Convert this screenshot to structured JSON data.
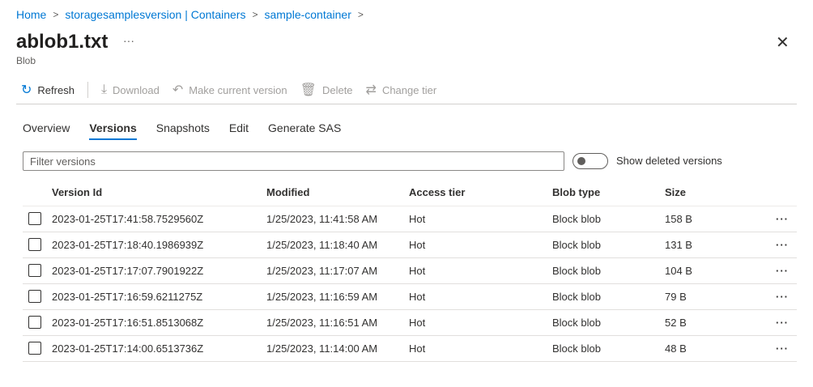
{
  "breadcrumb": [
    "Home",
    "storagesamplesversion | Containers",
    "sample-container"
  ],
  "title": "ablob1.txt",
  "subtitle": "Blob",
  "toolbar": {
    "refresh": "Refresh",
    "download": "Download",
    "make_current": "Make current version",
    "delete": "Delete",
    "change_tier": "Change tier"
  },
  "tabs": [
    "Overview",
    "Versions",
    "Snapshots",
    "Edit",
    "Generate SAS"
  ],
  "selected_tab": "Versions",
  "filter": {
    "placeholder": "Filter versions",
    "value": ""
  },
  "toggle": {
    "label": "Show deleted versions",
    "on": false
  },
  "columns": [
    "Version Id",
    "Modified",
    "Access tier",
    "Blob type",
    "Size"
  ],
  "rows": [
    [
      "2023-01-25T17:41:58.7529560Z",
      "1/25/2023, 11:41:58 AM",
      "Hot",
      "Block blob",
      "158 B"
    ],
    [
      "2023-01-25T17:18:40.1986939Z",
      "1/25/2023, 11:18:40 AM",
      "Hot",
      "Block blob",
      "131 B"
    ],
    [
      "2023-01-25T17:17:07.7901922Z",
      "1/25/2023, 11:17:07 AM",
      "Hot",
      "Block blob",
      "104 B"
    ],
    [
      "2023-01-25T17:16:59.6211275Z",
      "1/25/2023, 11:16:59 AM",
      "Hot",
      "Block blob",
      "79 B"
    ],
    [
      "2023-01-25T17:16:51.8513068Z",
      "1/25/2023, 11:16:51 AM",
      "Hot",
      "Block blob",
      "52 B"
    ],
    [
      "2023-01-25T17:14:00.6513736Z",
      "1/25/2023, 11:14:00 AM",
      "Hot",
      "Block blob",
      "48 B"
    ]
  ],
  "colors": {
    "accent": "#0078d4"
  }
}
